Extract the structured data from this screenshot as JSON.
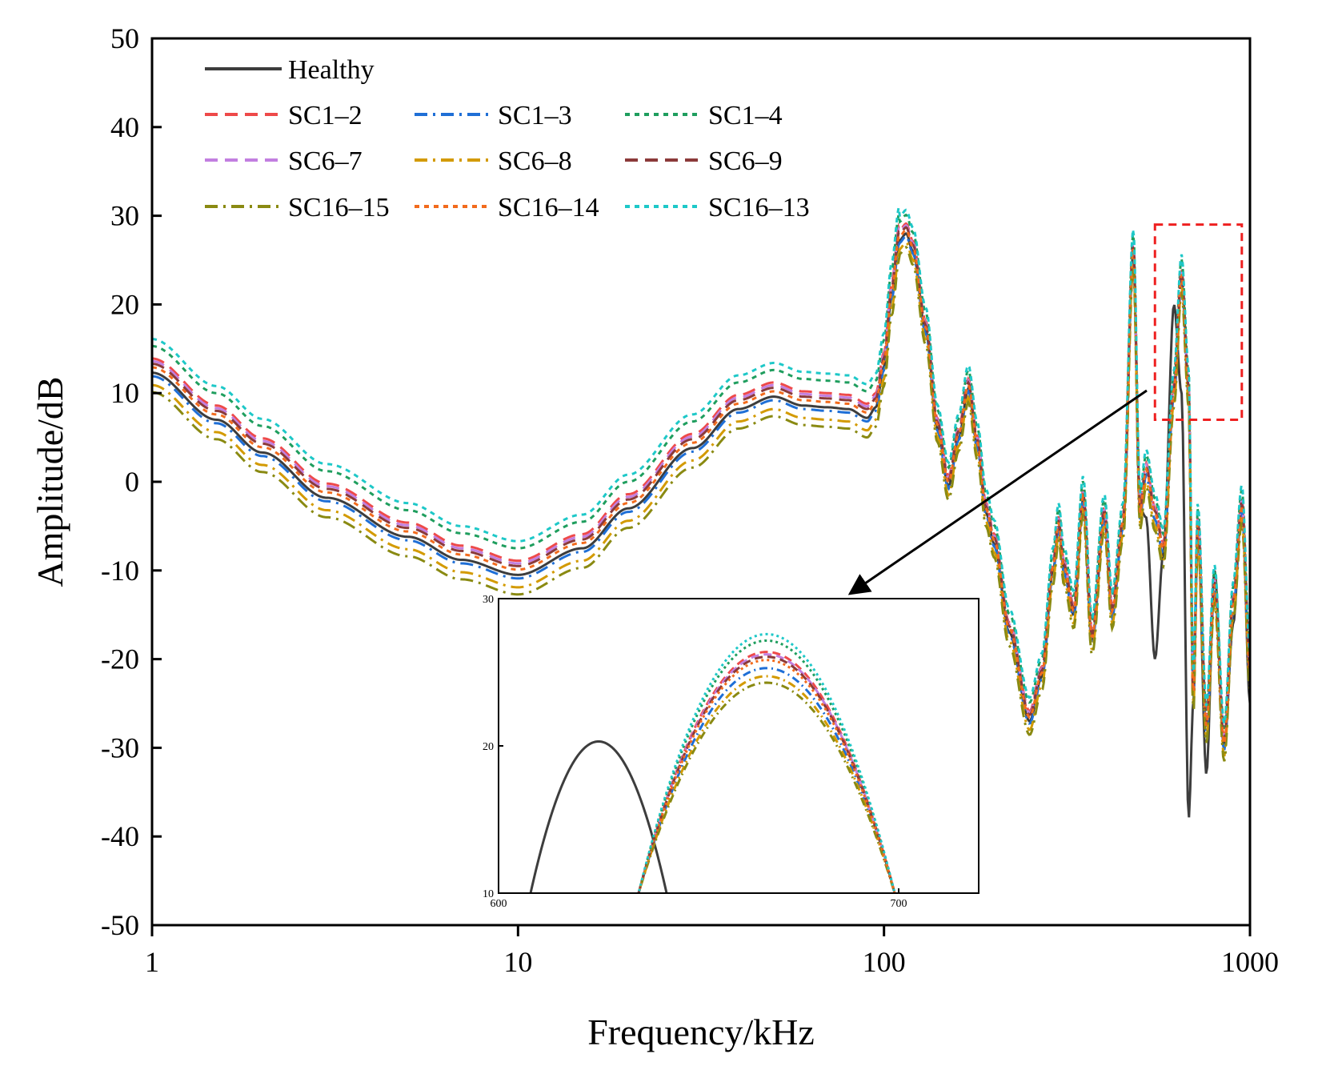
{
  "chart_data": {
    "type": "line",
    "xlabel": "Frequency/kHz",
    "ylabel": "Amplitude/dB",
    "xscale": "log",
    "xlim": [
      1,
      1000
    ],
    "ylim": [
      -50,
      50
    ],
    "xticks": [
      {
        "value": 1,
        "label": "1"
      },
      {
        "value": 10,
        "label": "10"
      },
      {
        "value": 100,
        "label": "100"
      },
      {
        "value": 1000,
        "label": "1000"
      }
    ],
    "yticks": [
      {
        "value": 50,
        "label": "50"
      },
      {
        "value": 40,
        "label": "40"
      },
      {
        "value": 30,
        "label": "30"
      },
      {
        "value": 20,
        "label": "20"
      },
      {
        "value": 10,
        "label": "10"
      },
      {
        "value": 0,
        "label": "0"
      },
      {
        "value": -10,
        "label": "-10"
      },
      {
        "value": -20,
        "label": "-20"
      },
      {
        "value": -30,
        "label": "-30"
      },
      {
        "value": -40,
        "label": "-40"
      },
      {
        "value": -50,
        "label": "-50"
      }
    ],
    "legend_position": "top-left",
    "series": [
      {
        "name": "Healthy",
        "color": "#3d3d3d",
        "dash": "solid",
        "offset": 0
      },
      {
        "name": "SC1–2",
        "color": "#ee4a4a",
        "dash": "dash",
        "offset": 1.6
      },
      {
        "name": "SC1–3",
        "color": "#1f6fd6",
        "dash": "dashdot",
        "offset": -0.4
      },
      {
        "name": "SC1–4",
        "color": "#1f9e5e",
        "dash": "short",
        "offset": 3.0
      },
      {
        "name": "SC6–7",
        "color": "#c27fe0",
        "dash": "dash",
        "offset": 1.3
      },
      {
        "name": "SC6–8",
        "color": "#d39a00",
        "dash": "dashdot",
        "offset": -1.4
      },
      {
        "name": "SC6–9",
        "color": "#8b3a3a",
        "dash": "dash",
        "offset": 1.0
      },
      {
        "name": "SC16–15",
        "color": "#8a8a12",
        "dash": "dashdot",
        "offset": -2.2
      },
      {
        "name": "SC16–14",
        "color": "#f26b1d",
        "dash": "short",
        "offset": 0.6
      },
      {
        "name": "SC16–13",
        "color": "#1ec8c8",
        "dash": "short",
        "offset": 3.8
      }
    ],
    "healthy_profile": {
      "x": [
        1,
        1.5,
        2,
        3,
        5,
        7,
        10,
        15,
        20,
        30,
        40,
        50,
        60,
        70,
        80,
        90,
        95,
        100,
        105,
        110,
        115,
        120,
        130,
        140,
        150,
        160,
        170,
        180,
        190,
        200,
        220,
        250,
        270,
        290,
        300,
        310,
        330,
        350,
        370,
        400,
        420,
        450,
        480,
        500,
        520,
        550,
        580,
        620,
        650,
        680,
        700,
        720,
        760,
        800,
        850,
        900,
        950,
        1000
      ],
      "y": [
        12.3,
        7.0,
        3.3,
        -1.8,
        -6.2,
        -8.8,
        -10.5,
        -7.5,
        -3.0,
        3.8,
        8.2,
        9.6,
        8.6,
        8.4,
        8.2,
        7.2,
        8.4,
        13.0,
        21.0,
        27.2,
        28.0,
        26.0,
        17.0,
        6.0,
        -0.5,
        5.0,
        10.5,
        4.0,
        -3.5,
        -7.0,
        -17.0,
        -27.0,
        -22.0,
        -10.0,
        -5.0,
        -10.0,
        -15.0,
        -2.0,
        -18.0,
        -4.0,
        -15.0,
        -5.0,
        26.0,
        -3.0,
        -4.0,
        -20.0,
        -8.0,
        20.0,
        10.0,
        -38.0,
        -25.0,
        -5.0,
        -33.0,
        -10.0,
        -30.0,
        -16.0,
        -2.0,
        -25.0
      ]
    },
    "fault_peak_profile": {
      "x": [
        500,
        520,
        550,
        580,
        620,
        650,
        680,
        700,
        720,
        760,
        800,
        850,
        900,
        950,
        1000
      ],
      "y": [
        -4.0,
        1.0,
        -4.0,
        -8.0,
        10.0,
        23.0,
        10.0,
        -25.0,
        -5.0,
        -28.0,
        -12.0,
        -30.0,
        -14.0,
        -3.0,
        -22.0
      ]
    },
    "highlight_box": {
      "x_range": [
        550,
        950
      ],
      "y_range": [
        7,
        29
      ],
      "color": "#ee2020"
    },
    "inset": {
      "xlim": [
        600,
        720
      ],
      "ylim": [
        10,
        30
      ],
      "xticks": [
        {
          "value": 600,
          "label": "600"
        },
        {
          "value": 700,
          "label": "700"
        }
      ],
      "yticks": [
        {
          "value": 30,
          "label": "30"
        },
        {
          "value": 20,
          "label": "20"
        },
        {
          "value": 10,
          "label": "10"
        }
      ],
      "healthy_peak": {
        "x": 625.0,
        "y": 20.3,
        "halfwidth": 17.0,
        "base": 10.0
      },
      "fault_peak": {
        "x": 667.0,
        "y": 25.5,
        "halfwidth": 32.0,
        "base": 10.0
      }
    }
  }
}
